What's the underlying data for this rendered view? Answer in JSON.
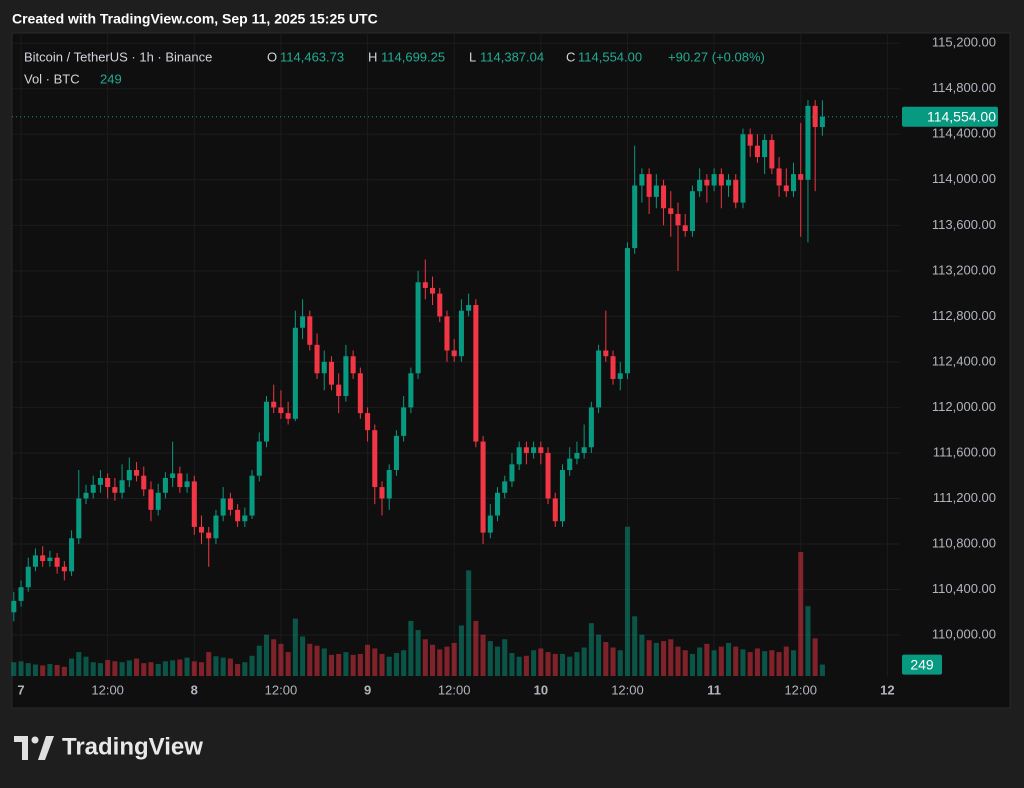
{
  "created": "Created with TradingView.com, Sep 11, 2025 15:25 UTC",
  "brand": "TradingView",
  "chart_data": {
    "type": "candlestick",
    "title": "Bitcoin / TetherUS · 1h · Binance",
    "legend": [
      {
        "name": "O",
        "value": 114463.73,
        "label": "114,463.73"
      },
      {
        "name": "H",
        "value": 114699.25,
        "label": "114,699.25"
      },
      {
        "name": "L",
        "value": 114387.04,
        "label": "114,387.04"
      },
      {
        "name": "C",
        "value": 114554,
        "label": "114,554.00"
      }
    ],
    "change": "+90.27 (+0.08%)",
    "last_price": {
      "value": 114554,
      "label": "114,554.00"
    },
    "up_color": "#089981",
    "down_color": "#f23645",
    "xlim": [
      "2025-09-06 22:45",
      "2025-09-12 01:45"
    ],
    "xticks": [
      {
        "value": "2025-09-07 00:00",
        "label": "7"
      },
      {
        "value": "2025-09-07 12:00",
        "label": "12:00"
      },
      {
        "value": "2025-09-08 00:00",
        "label": "8"
      },
      {
        "value": "2025-09-08 12:00",
        "label": "12:00"
      },
      {
        "value": "2025-09-09 00:00",
        "label": "9"
      },
      {
        "value": "2025-09-09 12:00",
        "label": "12:00"
      },
      {
        "value": "2025-09-10 00:00",
        "label": "10"
      },
      {
        "value": "2025-09-10 12:00",
        "label": "12:00"
      },
      {
        "value": "2025-09-11 00:00",
        "label": "11"
      },
      {
        "value": "2025-09-11 12:00",
        "label": "12:00"
      },
      {
        "value": "2025-09-12 00:00",
        "label": "12"
      }
    ],
    "ylim": [
      109640,
      115290
    ],
    "yticks": [
      {
        "value": 110000,
        "label": "110,000.00"
      },
      {
        "value": 110400,
        "label": "110,400.00"
      },
      {
        "value": 110800,
        "label": "110,800.00"
      },
      {
        "value": 111200,
        "label": "111,200.00"
      },
      {
        "value": 111600,
        "label": "111,600.00"
      },
      {
        "value": 112000,
        "label": "112,000.00"
      },
      {
        "value": 112400,
        "label": "112,400.00"
      },
      {
        "value": 112800,
        "label": "112,800.00"
      },
      {
        "value": 113200,
        "label": "113,200.00"
      },
      {
        "value": 113600,
        "label": "113,600.00"
      },
      {
        "value": 114000,
        "label": "114,000.00"
      },
      {
        "value": 114400,
        "label": "114,400.00"
      },
      {
        "value": 114800,
        "label": "114,800.00"
      },
      {
        "value": 115200,
        "label": "115,200.00"
      }
    ],
    "grid": true,
    "x": [
      "2025-09-06 23:00",
      "2025-09-07 00:00",
      "2025-09-07 01:00",
      "2025-09-07 02:00",
      "2025-09-07 03:00",
      "2025-09-07 04:00",
      "2025-09-07 05:00",
      "2025-09-07 06:00",
      "2025-09-07 07:00",
      "2025-09-07 08:00",
      "2025-09-07 09:00",
      "2025-09-07 10:00",
      "2025-09-07 11:00",
      "2025-09-07 12:00",
      "2025-09-07 13:00",
      "2025-09-07 14:00",
      "2025-09-07 15:00",
      "2025-09-07 16:00",
      "2025-09-07 17:00",
      "2025-09-07 18:00",
      "2025-09-07 19:00",
      "2025-09-07 20:00",
      "2025-09-07 21:00",
      "2025-09-07 22:00",
      "2025-09-07 23:00",
      "2025-09-08 00:00",
      "2025-09-08 01:00",
      "2025-09-08 02:00",
      "2025-09-08 03:00",
      "2025-09-08 04:00",
      "2025-09-08 05:00",
      "2025-09-08 06:00",
      "2025-09-08 07:00",
      "2025-09-08 08:00",
      "2025-09-08 09:00",
      "2025-09-08 10:00",
      "2025-09-08 11:00",
      "2025-09-08 12:00",
      "2025-09-08 13:00",
      "2025-09-08 14:00",
      "2025-09-08 15:00",
      "2025-09-08 16:00",
      "2025-09-08 17:00",
      "2025-09-08 18:00",
      "2025-09-08 19:00",
      "2025-09-08 20:00",
      "2025-09-08 21:00",
      "2025-09-08 22:00",
      "2025-09-08 23:00",
      "2025-09-09 00:00",
      "2025-09-09 01:00",
      "2025-09-09 02:00",
      "2025-09-09 03:00",
      "2025-09-09 04:00",
      "2025-09-09 05:00",
      "2025-09-09 06:00",
      "2025-09-09 07:00",
      "2025-09-09 08:00",
      "2025-09-09 09:00",
      "2025-09-09 10:00",
      "2025-09-09 11:00",
      "2025-09-09 12:00",
      "2025-09-09 13:00",
      "2025-09-09 14:00",
      "2025-09-09 15:00",
      "2025-09-09 16:00",
      "2025-09-09 17:00",
      "2025-09-09 18:00",
      "2025-09-09 19:00",
      "2025-09-09 20:00",
      "2025-09-09 21:00",
      "2025-09-09 22:00",
      "2025-09-09 23:00",
      "2025-09-10 00:00",
      "2025-09-10 01:00",
      "2025-09-10 02:00",
      "2025-09-10 03:00",
      "2025-09-10 04:00",
      "2025-09-10 05:00",
      "2025-09-10 06:00",
      "2025-09-10 07:00",
      "2025-09-10 08:00",
      "2025-09-10 09:00",
      "2025-09-10 10:00",
      "2025-09-10 11:00",
      "2025-09-10 12:00",
      "2025-09-10 13:00",
      "2025-09-10 14:00",
      "2025-09-10 15:00",
      "2025-09-10 16:00",
      "2025-09-10 17:00",
      "2025-09-10 18:00",
      "2025-09-10 19:00",
      "2025-09-10 20:00",
      "2025-09-10 21:00",
      "2025-09-10 22:00",
      "2025-09-10 23:00",
      "2025-09-11 00:00",
      "2025-09-11 01:00",
      "2025-09-11 02:00",
      "2025-09-11 03:00",
      "2025-09-11 04:00",
      "2025-09-11 05:00",
      "2025-09-11 06:00",
      "2025-09-11 07:00",
      "2025-09-11 08:00",
      "2025-09-11 09:00",
      "2025-09-11 10:00",
      "2025-09-11 11:00",
      "2025-09-11 12:00",
      "2025-09-11 13:00",
      "2025-09-11 14:00",
      "2025-09-11 15:00"
    ],
    "ohlc": [
      [
        110200,
        110380,
        110120,
        110300
      ],
      [
        110300,
        110480,
        110250,
        110420
      ],
      [
        110420,
        110680,
        110380,
        110600
      ],
      [
        110600,
        110760,
        110560,
        110700
      ],
      [
        110700,
        110780,
        110600,
        110650
      ],
      [
        110650,
        110740,
        110600,
        110680
      ],
      [
        110680,
        110720,
        110540,
        110600
      ],
      [
        110600,
        110650,
        110480,
        110560
      ],
      [
        110560,
        110920,
        110520,
        110850
      ],
      [
        110850,
        111450,
        110800,
        111200
      ],
      [
        111200,
        111320,
        111150,
        111250
      ],
      [
        111250,
        111400,
        111200,
        111320
      ],
      [
        111320,
        111450,
        111250,
        111380
      ],
      [
        111380,
        111420,
        111200,
        111300
      ],
      [
        111300,
        111380,
        111180,
        111250
      ],
      [
        111250,
        111500,
        111200,
        111360
      ],
      [
        111360,
        111560,
        111300,
        111450
      ],
      [
        111450,
        111520,
        111350,
        111400
      ],
      [
        111400,
        111480,
        111220,
        111280
      ],
      [
        111280,
        111350,
        111000,
        111100
      ],
      [
        111100,
        111330,
        111050,
        111250
      ],
      [
        111250,
        111430,
        111200,
        111380
      ],
      [
        111380,
        111700,
        111300,
        111420
      ],
      [
        111420,
        111480,
        111250,
        111300
      ],
      [
        111300,
        111420,
        111250,
        111350
      ],
      [
        111350,
        111400,
        110880,
        110950
      ],
      [
        110950,
        111050,
        110800,
        110900
      ],
      [
        110900,
        110950,
        110600,
        110850
      ],
      [
        110850,
        111100,
        110800,
        111050
      ],
      [
        111050,
        111300,
        111000,
        111200
      ],
      [
        111200,
        111250,
        111050,
        111100
      ],
      [
        111100,
        111150,
        110950,
        111000
      ],
      [
        111000,
        111120,
        110950,
        111050
      ],
      [
        111050,
        111450,
        111020,
        111400
      ],
      [
        111400,
        111780,
        111350,
        111700
      ],
      [
        111700,
        112100,
        111650,
        112050
      ],
      [
        112050,
        112200,
        111950,
        112000
      ],
      [
        112000,
        112150,
        111900,
        111950
      ],
      [
        111950,
        112050,
        111850,
        111900
      ],
      [
        111900,
        112850,
        111880,
        112700
      ],
      [
        112700,
        112950,
        112600,
        112800
      ],
      [
        112800,
        112850,
        112500,
        112550
      ],
      [
        112550,
        112650,
        112250,
        112300
      ],
      [
        112300,
        112500,
        112150,
        112400
      ],
      [
        112400,
        112450,
        112150,
        112200
      ],
      [
        112200,
        112300,
        111950,
        112100
      ],
      [
        112100,
        112550,
        112050,
        112450
      ],
      [
        112450,
        112500,
        112250,
        112300
      ],
      [
        112300,
        112350,
        111900,
        111950
      ],
      [
        111950,
        112000,
        111700,
        111800
      ],
      [
        111800,
        111850,
        111150,
        111300
      ],
      [
        111300,
        111350,
        111050,
        111200
      ],
      [
        111200,
        111500,
        111100,
        111450
      ],
      [
        111450,
        111800,
        111400,
        111750
      ],
      [
        111750,
        112100,
        111700,
        112000
      ],
      [
        112000,
        112350,
        111950,
        112300
      ],
      [
        112300,
        113200,
        112250,
        113100
      ],
      [
        113100,
        113300,
        112950,
        113050
      ],
      [
        113050,
        113150,
        112900,
        113000
      ],
      [
        113000,
        113050,
        112750,
        112800
      ],
      [
        112800,
        112850,
        112400,
        112500
      ],
      [
        112500,
        112600,
        112400,
        112450
      ],
      [
        112450,
        112950,
        112400,
        112850
      ],
      [
        112850,
        113000,
        112800,
        112900
      ],
      [
        112900,
        112950,
        111650,
        111700
      ],
      [
        111700,
        111750,
        110800,
        110900
      ],
      [
        110900,
        111150,
        110850,
        111050
      ],
      [
        111050,
        111300,
        111000,
        111250
      ],
      [
        111250,
        111400,
        111200,
        111350
      ],
      [
        111350,
        111600,
        111300,
        111500
      ],
      [
        111500,
        111700,
        111450,
        111650
      ],
      [
        111650,
        111700,
        111500,
        111600
      ],
      [
        111600,
        111700,
        111550,
        111650
      ],
      [
        111650,
        111700,
        111500,
        111600
      ],
      [
        111600,
        111650,
        111150,
        111200
      ],
      [
        111200,
        111250,
        110950,
        111000
      ],
      [
        111000,
        111500,
        110950,
        111450
      ],
      [
        111450,
        111650,
        111400,
        111550
      ],
      [
        111550,
        111700,
        111500,
        111600
      ],
      [
        111600,
        111850,
        111550,
        111650
      ],
      [
        111650,
        112050,
        111600,
        112000
      ],
      [
        112000,
        112550,
        111950,
        112500
      ],
      [
        112500,
        112850,
        112400,
        112450
      ],
      [
        112450,
        112500,
        112200,
        112250
      ],
      [
        112250,
        112400,
        112150,
        112300
      ],
      [
        112300,
        113450,
        112250,
        113400
      ],
      [
        113400,
        114300,
        113350,
        113950
      ],
      [
        113950,
        114100,
        113800,
        114050
      ],
      [
        114050,
        114100,
        113700,
        113850
      ],
      [
        113850,
        114050,
        113750,
        113950
      ],
      [
        113950,
        114000,
        113600,
        113750
      ],
      [
        113750,
        113900,
        113500,
        113700
      ],
      [
        113700,
        113800,
        113200,
        113600
      ],
      [
        113600,
        113700,
        113500,
        113550
      ],
      [
        113550,
        113950,
        113500,
        113900
      ],
      [
        113900,
        114100,
        113850,
        114000
      ],
      [
        114000,
        114050,
        113800,
        113950
      ],
      [
        113950,
        114100,
        113900,
        114050
      ],
      [
        114050,
        114100,
        113750,
        113950
      ],
      [
        113950,
        114050,
        113850,
        114000
      ],
      [
        114000,
        114050,
        113750,
        113800
      ],
      [
        113800,
        114450,
        113750,
        114400
      ],
      [
        114400,
        114450,
        114200,
        114300
      ],
      [
        114300,
        114400,
        114150,
        114200
      ],
      [
        114200,
        114400,
        114050,
        114350
      ],
      [
        114350,
        114400,
        114050,
        114100
      ],
      [
        114100,
        114200,
        113850,
        113950
      ],
      [
        113950,
        114100,
        113850,
        113900
      ],
      [
        113900,
        114150,
        113850,
        114050
      ],
      [
        114050,
        114500,
        113500,
        114000
      ],
      [
        114000,
        114700,
        113450,
        114650
      ],
      [
        114650,
        114700,
        113900,
        114463.73
      ],
      [
        114463.73,
        114699.25,
        114387.04,
        114554
      ]
    ],
    "volume": {
      "name": "Vol · BTC",
      "ylim": [
        0,
        14000
      ],
      "values": [
        300,
        320,
        280,
        250,
        230,
        260,
        240,
        200,
        380,
        520,
        420,
        300,
        280,
        350,
        320,
        300,
        340,
        380,
        280,
        300,
        260,
        320,
        340,
        360,
        400,
        320,
        300,
        520,
        430,
        400,
        380,
        260,
        300,
        440,
        660,
        900,
        800,
        700,
        520,
        1250,
        860,
        700,
        660,
        600,
        460,
        480,
        520,
        460,
        480,
        680,
        600,
        480,
        420,
        500,
        560,
        1200,
        1000,
        800,
        680,
        580,
        640,
        720,
        1100,
        2300,
        1200,
        900,
        760,
        640,
        800,
        500,
        420,
        440,
        560,
        600,
        520,
        480,
        480,
        420,
        520,
        620,
        1150,
        900,
        740,
        620,
        560,
        3250,
        1300,
        900,
        780,
        720,
        760,
        800,
        640,
        560,
        480,
        620,
        700,
        560,
        640,
        720,
        640,
        580,
        520,
        600,
        540,
        560,
        520,
        640,
        560,
        2700,
        1520,
        820,
        249
      ]
    }
  }
}
